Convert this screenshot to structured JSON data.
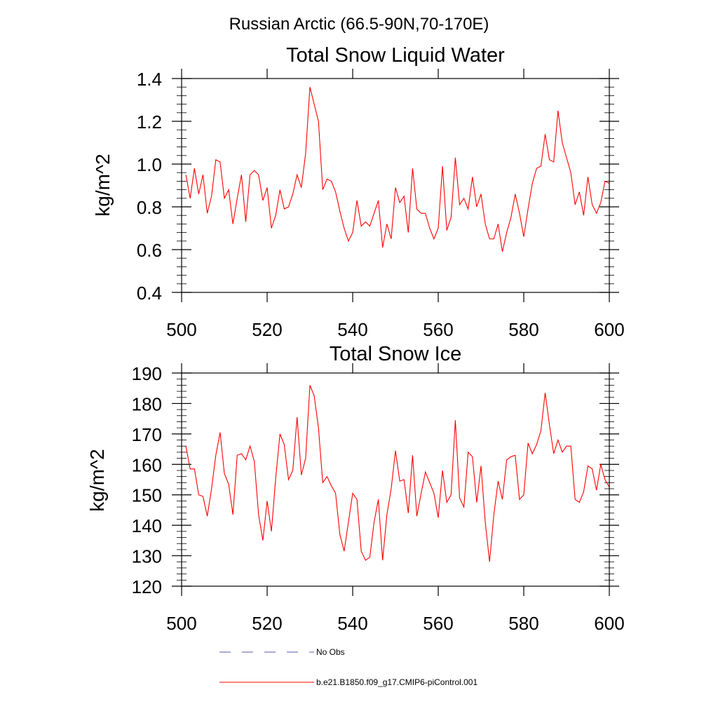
{
  "figure_title": "Russian Arctic (66.5-90N,70-170E)",
  "legend": {
    "items": [
      {
        "label": "No Obs",
        "color": "#5a5aa0",
        "style": "dashed"
      },
      {
        "label": "b.e21.B1850.f09_g17.CMIP6-piControl.001",
        "color": "#ff0000",
        "style": "solid"
      }
    ]
  },
  "chart_data": [
    {
      "type": "line",
      "title": "Total Snow Liquid Water",
      "ylabel": "kg/m^2",
      "xlabel": "",
      "xlim": [
        500,
        600
      ],
      "ylim": [
        0.4,
        1.4
      ],
      "xticks": [
        500,
        520,
        540,
        560,
        580,
        600
      ],
      "yticks": [
        0.4,
        0.6,
        0.8,
        1.0,
        1.2,
        1.4
      ],
      "ytick_labels": [
        "0.4",
        "0.6",
        "0.8",
        "1.0",
        "1.2",
        "1.4"
      ],
      "xtick_labels": [
        "500",
        "520",
        "540",
        "560",
        "580",
        "600"
      ],
      "series": [
        {
          "name": "b.e21.B1850.f09_g17.CMIP6-piControl.001",
          "color": "#ff0000",
          "x_start": 501,
          "values": [
            0.95,
            0.84,
            0.98,
            0.86,
            0.95,
            0.77,
            0.85,
            1.02,
            1.01,
            0.84,
            0.88,
            0.72,
            0.84,
            0.95,
            0.73,
            0.95,
            0.97,
            0.95,
            0.83,
            0.89,
            0.7,
            0.76,
            0.88,
            0.79,
            0.8,
            0.86,
            0.95,
            0.89,
            1.05,
            1.36,
            1.28,
            1.2,
            0.88,
            0.93,
            0.92,
            0.87,
            0.78,
            0.7,
            0.64,
            0.68,
            0.83,
            0.71,
            0.73,
            0.71,
            0.77,
            0.83,
            0.61,
            0.72,
            0.65,
            0.89,
            0.82,
            0.85,
            0.68,
            0.98,
            0.79,
            0.77,
            0.77,
            0.7,
            0.65,
            0.7,
            0.99,
            0.69,
            0.75,
            1.03,
            0.81,
            0.84,
            0.79,
            0.94,
            0.8,
            0.86,
            0.72,
            0.65,
            0.65,
            0.72,
            0.59,
            0.68,
            0.75,
            0.86,
            0.77,
            0.66,
            0.79,
            0.91,
            0.98,
            0.99,
            1.14,
            1.02,
            1.01,
            1.25,
            1.1,
            1.03,
            0.96,
            0.81,
            0.87,
            0.76,
            0.94,
            0.81,
            0.77,
            0.82,
            0.92,
            0.91
          ]
        }
      ]
    },
    {
      "type": "line",
      "title": "Total Snow Ice",
      "ylabel": "kg/m^2",
      "xlabel": "",
      "xlim": [
        500,
        600
      ],
      "ylim": [
        120,
        190
      ],
      "xticks": [
        500,
        520,
        540,
        560,
        580,
        600
      ],
      "yticks": [
        120,
        130,
        140,
        150,
        160,
        170,
        180,
        190
      ],
      "ytick_labels": [
        "120",
        "130",
        "140",
        "150",
        "160",
        "170",
        "180",
        "190"
      ],
      "xtick_labels": [
        "500",
        "520",
        "540",
        "560",
        "580",
        "600"
      ],
      "series": [
        {
          "name": "b.e21.B1850.f09_g17.CMIP6-piControl.001",
          "color": "#ff0000",
          "x_start": 501,
          "values": [
            166,
            158.5,
            158.5,
            150,
            149.5,
            143,
            152,
            163,
            170.5,
            157,
            153.5,
            143.5,
            163,
            163.5,
            161.5,
            166,
            161,
            143.5,
            135,
            148,
            138,
            155.5,
            170,
            166.5,
            155,
            158,
            175.5,
            156.5,
            162,
            186,
            182.5,
            172,
            154,
            156,
            153,
            150.5,
            137,
            131.5,
            141,
            150.5,
            148.5,
            131.5,
            128.5,
            129.5,
            141,
            148.5,
            128.5,
            143.5,
            152,
            164.5,
            154.5,
            155,
            144,
            163,
            143,
            150.5,
            157.5,
            154,
            150.5,
            142.5,
            158,
            147.5,
            150,
            174.5,
            149,
            146,
            164,
            162.5,
            147.5,
            159.5,
            141,
            128,
            143.5,
            154.5,
            148.5,
            161.5,
            162.5,
            163,
            148.5,
            150,
            167,
            163.5,
            166.5,
            171,
            183.5,
            173,
            163.5,
            168,
            164,
            166,
            166,
            148.5,
            147.5,
            151,
            159.5,
            158.5,
            151.5,
            160,
            155,
            152.5
          ]
        }
      ]
    }
  ]
}
